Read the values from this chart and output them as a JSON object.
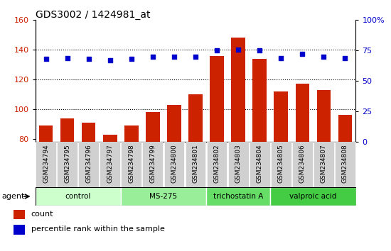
{
  "title": "GDS3002 / 1424981_at",
  "samples": [
    "GSM234794",
    "GSM234795",
    "GSM234796",
    "GSM234797",
    "GSM234798",
    "GSM234799",
    "GSM234800",
    "GSM234801",
    "GSM234802",
    "GSM234803",
    "GSM234804",
    "GSM234805",
    "GSM234806",
    "GSM234807",
    "GSM234808"
  ],
  "counts": [
    89,
    94,
    91,
    83,
    89,
    98,
    103,
    110,
    136,
    148,
    134,
    112,
    117,
    113,
    96
  ],
  "percentile": [
    68,
    69,
    68,
    67,
    68,
    70,
    70,
    70,
    75,
    76,
    75,
    69,
    72,
    70,
    69
  ],
  "bar_color": "#cc2200",
  "dot_color": "#0000cc",
  "ylim_left": [
    78,
    160
  ],
  "ylim_right": [
    0,
    100
  ],
  "yticks_left": [
    80,
    100,
    120,
    140,
    160
  ],
  "yticks_right": [
    0,
    25,
    50,
    75,
    100
  ],
  "groups": [
    {
      "label": "control",
      "start": 0,
      "end": 3,
      "color": "#ccffcc"
    },
    {
      "label": "MS-275",
      "start": 4,
      "end": 7,
      "color": "#99ee99"
    },
    {
      "label": "trichostatin A",
      "start": 8,
      "end": 10,
      "color": "#66dd66"
    },
    {
      "label": "valproic acid",
      "start": 11,
      "end": 14,
      "color": "#44cc44"
    }
  ],
  "legend_count_color": "#cc2200",
  "legend_dot_color": "#0000cc",
  "agent_label": "agent",
  "background_plot": "#ffffff",
  "background_xtick": "#d0d0d0",
  "grid_color": "#000000"
}
